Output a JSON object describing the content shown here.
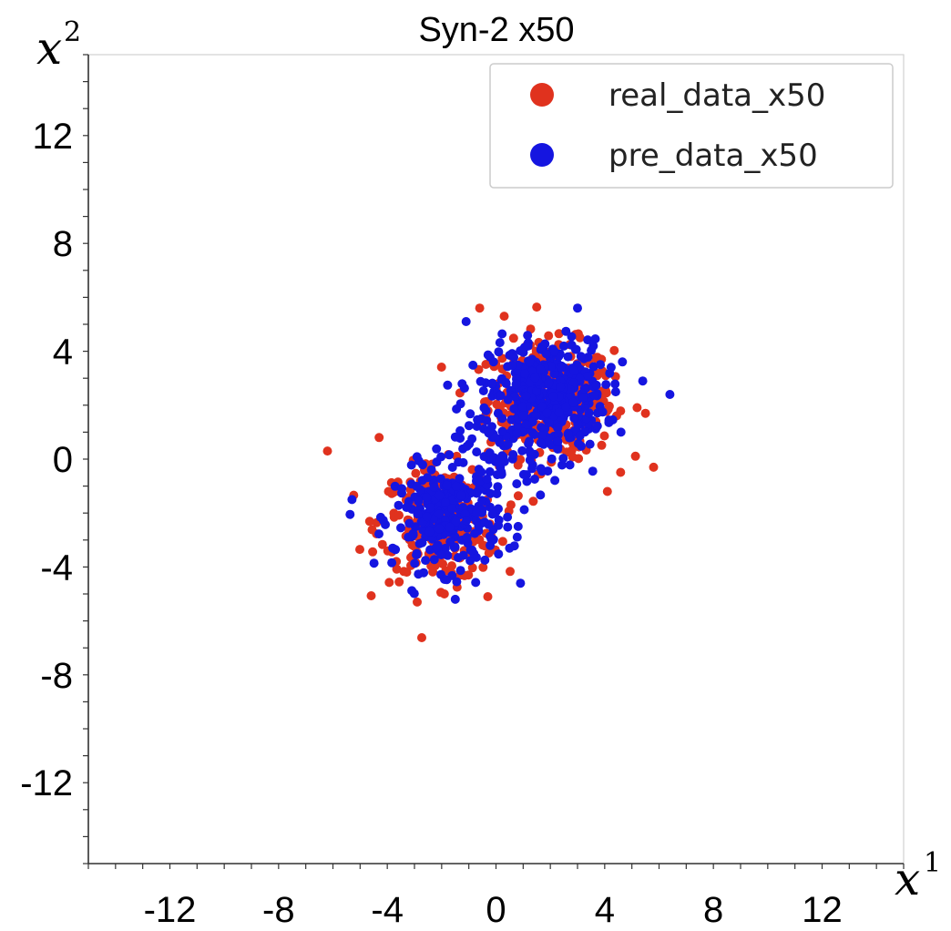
{
  "chart_data": {
    "type": "scatter",
    "title": "Syn-2 x50",
    "xlabel": {
      "var": "x",
      "sup": "1"
    },
    "ylabel": {
      "var": "x",
      "sup": "2"
    },
    "xlim": [
      -15,
      15
    ],
    "ylim": [
      -15,
      15
    ],
    "xticks": [
      -12,
      -8,
      -4,
      0,
      4,
      8,
      12
    ],
    "yticks": [
      12,
      8,
      4,
      0,
      -4,
      -8,
      -12
    ],
    "legend_position": "top-right",
    "grid": false,
    "series": [
      {
        "name": "real_data_x50",
        "color": "#e0321e",
        "clusters": [
          {
            "center": [
              2.0,
              2.2
            ],
            "spread": [
              1.15,
              1.05
            ],
            "count": 380
          },
          {
            "center": [
              -2.1,
              -2.4
            ],
            "spread": [
              1.1,
              1.05
            ],
            "count": 270
          }
        ],
        "outliers": [
          [
            -6.2,
            0.3
          ],
          [
            -0.6,
            5.6
          ],
          [
            0.3,
            5.3
          ],
          [
            5.8,
            -0.3
          ],
          [
            4.1,
            -1.2
          ],
          [
            -2.9,
            -5.3
          ],
          [
            -0.3,
            -5.1
          ],
          [
            5.5,
            1.7
          ],
          [
            -4.3,
            0.8
          ],
          [
            -1.9,
            -5.0
          ]
        ]
      },
      {
        "name": "pre_data_x50",
        "color": "#1515e0",
        "clusters": [
          {
            "center": [
              1.9,
              2.4
            ],
            "spread": [
              1.05,
              1.0
            ],
            "count": 400
          },
          {
            "center": [
              -1.8,
              -2.2
            ],
            "spread": [
              0.95,
              0.95
            ],
            "count": 260
          },
          {
            "center": [
              0.0,
              0.0
            ],
            "spread": [
              1.2,
              1.1
            ],
            "count": 90
          }
        ],
        "outliers": [
          [
            6.4,
            2.4
          ],
          [
            3.0,
            5.6
          ],
          [
            -1.1,
            5.1
          ],
          [
            -5.3,
            -1.5
          ],
          [
            0.9,
            -4.6
          ],
          [
            -1.5,
            -5.2
          ],
          [
            5.4,
            2.9
          ],
          [
            0.5,
            -3.3
          ],
          [
            4.6,
            1.0
          ],
          [
            -3.8,
            -3.3
          ]
        ]
      }
    ]
  }
}
